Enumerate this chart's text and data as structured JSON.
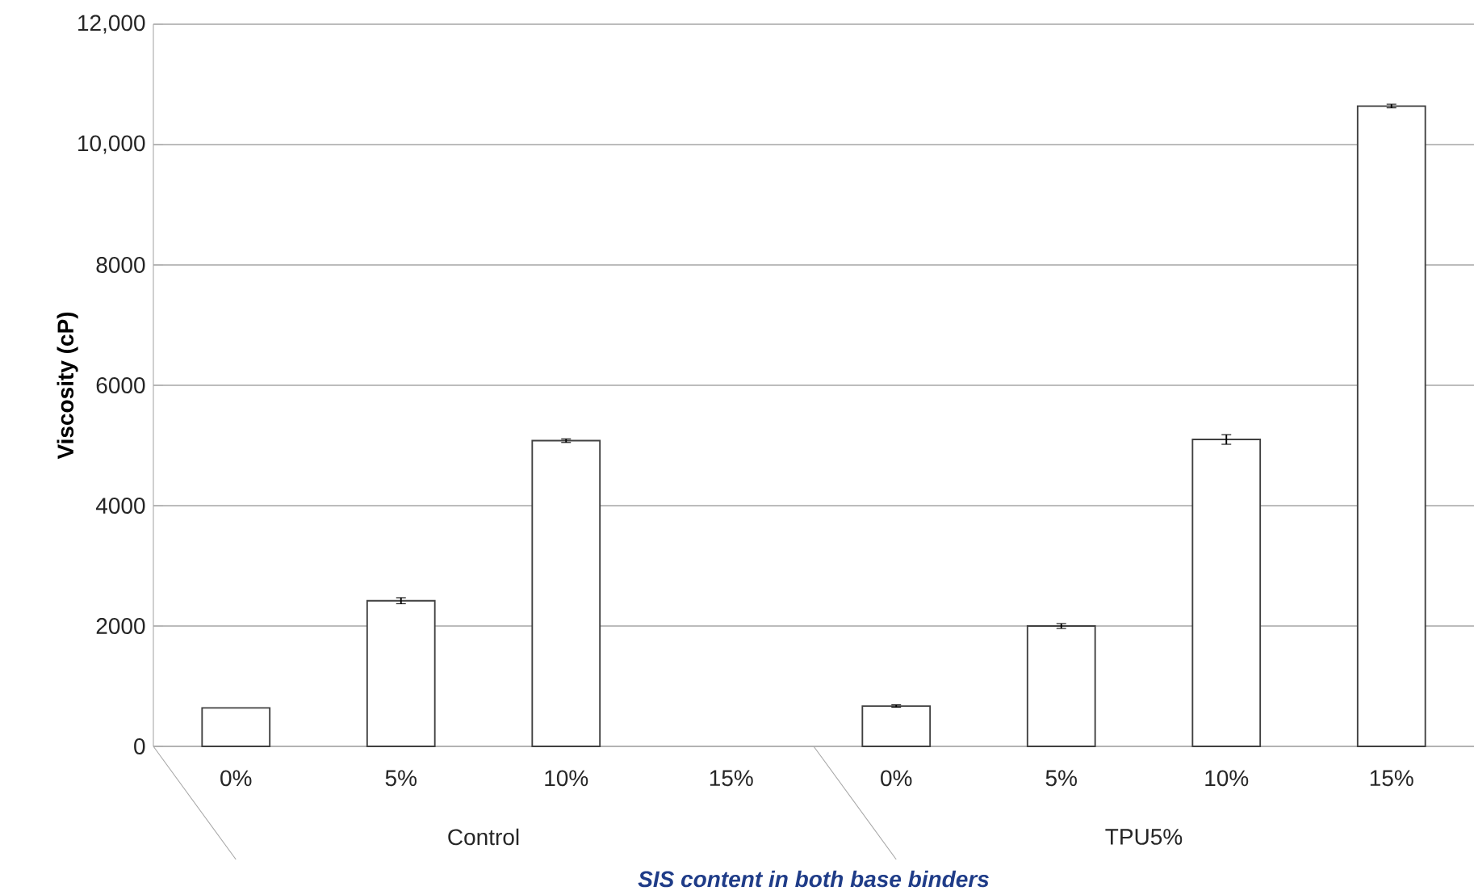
{
  "chart_data": {
    "type": "bar",
    "categories": [
      "0%",
      "5%",
      "10%",
      "15%",
      "0%",
      "5%",
      "10%",
      "15%"
    ],
    "values": [
      640,
      2420,
      5080,
      null,
      670,
      2000,
      5100,
      10640
    ],
    "errors": [
      null,
      50,
      30,
      null,
      20,
      40,
      80,
      30
    ],
    "color": "#ffffff",
    "ylabel": "Viscosity (cP)",
    "xlabel": "SIS content in both base binders",
    "annotations": [
      "Control",
      "TPU5%"
    ],
    "ylim": [
      0,
      12000
    ],
    "yticks": [
      0,
      2000,
      4000,
      6000,
      8000,
      {
        "value": 10000,
        "label": "10,000"
      },
      {
        "value": 12000,
        "label": "12,000"
      }
    ],
    "grid": "y"
  }
}
